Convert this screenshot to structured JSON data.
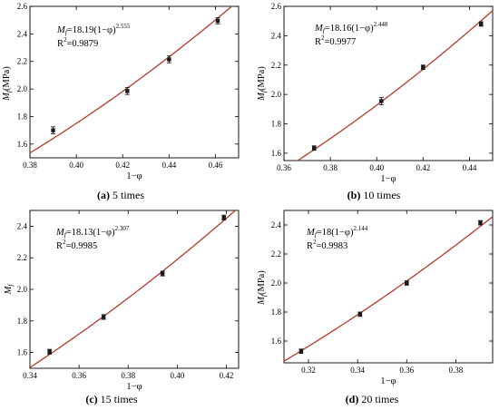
{
  "chart_data": [
    {
      "type": "scatter",
      "panel": "a",
      "caption_letter": "(a)",
      "caption_text": "5 times",
      "xlabel": "1−φ",
      "ylabel_main": "M",
      "ylabel_sub": "f",
      "ylabel_unit": "(MPa)",
      "xlim": [
        0.38,
        0.47
      ],
      "ylim": [
        1.5,
        2.6
      ],
      "xticks": [
        "0.38",
        "0.40",
        "0.42",
        "0.44",
        "0.46"
      ],
      "yticks": [
        "1.6",
        "1.8",
        "2.0",
        "2.2",
        "2.4",
        "2.6"
      ],
      "xtick_values": [
        0.38,
        0.4,
        0.42,
        0.44,
        0.46
      ],
      "ytick_values": [
        1.6,
        1.8,
        2.0,
        2.2,
        2.4,
        2.6
      ],
      "x": [
        0.39,
        0.422,
        0.44,
        0.461
      ],
      "y": [
        1.7,
        1.985,
        2.215,
        2.495
      ],
      "yerr": [
        0.025,
        0.025,
        0.025,
        0.022
      ],
      "fit": {
        "a": 18.19,
        "b": 2.555
      },
      "eq_lhs": "M",
      "eq_sub": "f",
      "eq_rhs": "=18.19(1−φ)",
      "eq_exp": "2.555",
      "r2_label": "R",
      "r2_sup": "2",
      "r2_value": "=0.9879"
    },
    {
      "type": "scatter",
      "panel": "b",
      "caption_letter": "(b)",
      "caption_text": "10 times",
      "xlabel": "1−φ",
      "ylabel_main": "M",
      "ylabel_sub": "f",
      "ylabel_unit": "(MPa)",
      "xlim": [
        0.36,
        0.45
      ],
      "ylim": [
        1.55,
        2.6
      ],
      "xticks": [
        "0.36",
        "0.38",
        "0.40",
        "0.42",
        "0.44"
      ],
      "yticks": [
        "1.6",
        "1.8",
        "2.0",
        "2.2",
        "2.4",
        "2.6"
      ],
      "xtick_values": [
        0.36,
        0.38,
        0.4,
        0.42,
        0.44
      ],
      "ytick_values": [
        1.6,
        1.8,
        2.0,
        2.2,
        2.4,
        2.6
      ],
      "x": [
        0.373,
        0.402,
        0.42,
        0.445
      ],
      "y": [
        1.635,
        1.955,
        2.185,
        2.48
      ],
      "yerr": [
        0.015,
        0.025,
        0.015,
        0.015
      ],
      "fit": {
        "a": 18.16,
        "b": 2.448
      },
      "eq_lhs": "M",
      "eq_sub": "f",
      "eq_rhs": "=18.16(1−φ)",
      "eq_exp": "2.448",
      "r2_label": "R",
      "r2_sup": "2",
      "r2_value": "=0.9977"
    },
    {
      "type": "scatter",
      "panel": "c",
      "caption_letter": "(c)",
      "caption_text": "15 times",
      "xlabel": "1−φ",
      "ylabel_main": "M",
      "ylabel_sub": "f",
      "ylabel_unit": "",
      "xlim": [
        0.34,
        0.425
      ],
      "ylim": [
        1.5,
        2.5
      ],
      "xticks": [
        "0.34",
        "0.36",
        "0.38",
        "0.40",
        "0.42"
      ],
      "yticks": [
        "1.6",
        "1.8",
        "2.0",
        "2.2",
        "2.4"
      ],
      "xtick_values": [
        0.34,
        0.36,
        0.38,
        0.4,
        0.42
      ],
      "ytick_values": [
        1.6,
        1.8,
        2.0,
        2.2,
        2.4
      ],
      "x": [
        0.348,
        0.37,
        0.394,
        0.419
      ],
      "y": [
        1.605,
        1.825,
        2.1,
        2.455
      ],
      "yerr": [
        0.015,
        0.015,
        0.015,
        0.015
      ],
      "fit": {
        "a": 18.13,
        "b": 2.307
      },
      "eq_lhs": "M",
      "eq_sub": "f",
      "eq_rhs": "=18.13(1−φ)",
      "eq_exp": "2.307",
      "r2_label": "R",
      "r2_sup": "2",
      "r2_value": "=0.9985"
    },
    {
      "type": "scatter",
      "panel": "d",
      "caption_letter": "(d)",
      "caption_text": "20 times",
      "xlabel": "1−φ",
      "ylabel_main": "M",
      "ylabel_sub": "f",
      "ylabel_unit": "(MPa)",
      "xlim": [
        0.31,
        0.395
      ],
      "ylim": [
        1.45,
        2.5
      ],
      "xticks": [
        "0.32",
        "0.34",
        "0.36",
        "0.38"
      ],
      "yticks": [
        "1.6",
        "1.8",
        "2.0",
        "2.2",
        "2.4"
      ],
      "xtick_values": [
        0.32,
        0.34,
        0.36,
        0.38
      ],
      "ytick_values": [
        1.6,
        1.8,
        2.0,
        2.2,
        2.4
      ],
      "x": [
        0.317,
        0.341,
        0.36,
        0.39
      ],
      "y": [
        1.53,
        1.785,
        2.0,
        2.415
      ],
      "yerr": [
        0.015,
        0.015,
        0.015,
        0.015
      ],
      "fit": {
        "a": 18.0,
        "b": 2.144
      },
      "eq_lhs": "M",
      "eq_sub": "f",
      "eq_rhs": "=18(1−φ)",
      "eq_exp": "2.144",
      "r2_label": "R",
      "r2_sup": "2",
      "r2_value": "=0.9983"
    }
  ],
  "colors": {
    "fit_line": "#b53a2a",
    "marker": "#1a1a1a",
    "axis": "#000000"
  }
}
